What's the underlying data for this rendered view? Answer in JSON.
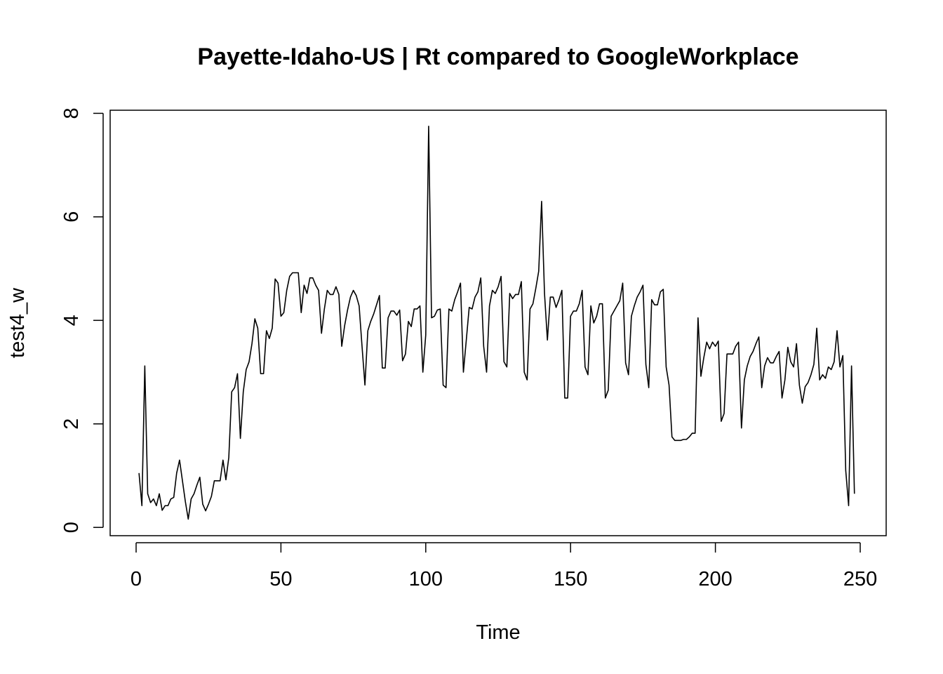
{
  "chart_data": {
    "type": "line",
    "title": "Payette-Idaho-US | Rt compared to GoogleWorkplace",
    "xlabel": "Time",
    "ylabel": "test4_w",
    "xlim": [
      -8.96,
      258.96
    ],
    "ylim": [
      -0.16,
      8.06
    ],
    "xticks": [
      0,
      50,
      100,
      150,
      200,
      250
    ],
    "yticks": [
      0,
      2,
      4,
      6,
      8
    ],
    "grid": false,
    "legend": "none",
    "line_color": "#000000",
    "series": [
      {
        "x": [
          1,
          2,
          3,
          4,
          5,
          6,
          7,
          8,
          9,
          10,
          11,
          12,
          13,
          14,
          15,
          16,
          17,
          18,
          19,
          20,
          21,
          22,
          23,
          24,
          25,
          26,
          27,
          28,
          29,
          30,
          31,
          32,
          33,
          34,
          35,
          36,
          37,
          38,
          39,
          40,
          41,
          42,
          43,
          44,
          45,
          46,
          47,
          48,
          49,
          50,
          51,
          52,
          53,
          54,
          55,
          56,
          57,
          58,
          59,
          60,
          61,
          62,
          63,
          64,
          65,
          66,
          67,
          68,
          69,
          70,
          71,
          72,
          73,
          74,
          75,
          76,
          77,
          78,
          79,
          80,
          81,
          82,
          83,
          84,
          85,
          86,
          87,
          88,
          89,
          90,
          91,
          92,
          93,
          94,
          95,
          96,
          97,
          98,
          99,
          100,
          101,
          102,
          103,
          104,
          105,
          106,
          107,
          108,
          109,
          110,
          111,
          112,
          113,
          114,
          115,
          116,
          117,
          118,
          119,
          120,
          121,
          122,
          123,
          124,
          125,
          126,
          127,
          128,
          129,
          130,
          131,
          132,
          133,
          134,
          135,
          136,
          137,
          138,
          139,
          140,
          141,
          142,
          143,
          144,
          145,
          146,
          147,
          148,
          149,
          150,
          151,
          152,
          153,
          154,
          155,
          156,
          157,
          158,
          159,
          160,
          161,
          162,
          163,
          164,
          165,
          166,
          167,
          168,
          169,
          170,
          171,
          172,
          173,
          174,
          175,
          176,
          177,
          178,
          179,
          180,
          181,
          182,
          183,
          184,
          185,
          186,
          187,
          188,
          189,
          190,
          191,
          192,
          193,
          194,
          195,
          196,
          197,
          198,
          199,
          200,
          201,
          202,
          203,
          204,
          205,
          206,
          207,
          208,
          209,
          210,
          211,
          212,
          213,
          214,
          215,
          216,
          217,
          218,
          219,
          220,
          221,
          222,
          223,
          224,
          225,
          226,
          227,
          228,
          229,
          230,
          231,
          232,
          233,
          234,
          235,
          236,
          237,
          238,
          239,
          240,
          241,
          242,
          243,
          244,
          245,
          246,
          247,
          248
        ],
        "values": [
          1.05,
          0.42,
          3.12,
          0.65,
          0.48,
          0.55,
          0.42,
          0.65,
          0.33,
          0.42,
          0.42,
          0.55,
          0.58,
          1.05,
          1.3,
          0.9,
          0.5,
          0.16,
          0.55,
          0.65,
          0.82,
          0.97,
          0.45,
          0.32,
          0.45,
          0.6,
          0.9,
          0.9,
          0.9,
          1.3,
          0.92,
          1.35,
          2.62,
          2.7,
          2.97,
          1.72,
          2.62,
          3.05,
          3.2,
          3.55,
          4.03,
          3.85,
          2.97,
          2.97,
          3.8,
          3.65,
          3.85,
          4.8,
          4.72,
          4.08,
          4.15,
          4.58,
          4.85,
          4.92,
          4.92,
          4.92,
          4.15,
          4.68,
          4.52,
          4.82,
          4.82,
          4.68,
          4.58,
          3.75,
          4.22,
          4.58,
          4.5,
          4.5,
          4.65,
          4.5,
          3.5,
          3.9,
          4.2,
          4.45,
          4.58,
          4.48,
          4.28,
          3.5,
          2.75,
          3.8,
          3.98,
          4.12,
          4.3,
          4.48,
          3.08,
          3.08,
          4.05,
          4.18,
          4.18,
          4.1,
          4.2,
          3.22,
          3.35,
          3.98,
          3.88,
          4.22,
          4.22,
          4.28,
          3.0,
          3.72,
          7.75,
          4.05,
          4.08,
          4.2,
          4.22,
          2.75,
          2.7,
          4.22,
          4.18,
          4.4,
          4.55,
          4.72,
          3.0,
          3.62,
          4.25,
          4.22,
          4.45,
          4.55,
          4.82,
          3.5,
          3.0,
          4.28,
          4.58,
          4.52,
          4.65,
          4.85,
          3.2,
          3.1,
          4.52,
          4.42,
          4.5,
          4.5,
          4.75,
          3.0,
          2.85,
          4.22,
          4.32,
          4.62,
          4.95,
          6.3,
          4.52,
          3.62,
          4.45,
          4.45,
          4.25,
          4.4,
          4.58,
          2.5,
          2.5,
          4.08,
          4.18,
          4.18,
          4.32,
          4.58,
          3.1,
          2.95,
          4.28,
          3.95,
          4.08,
          4.32,
          4.32,
          2.5,
          2.65,
          4.08,
          4.18,
          4.28,
          4.38,
          4.72,
          3.18,
          2.95,
          4.08,
          4.28,
          4.45,
          4.55,
          4.68,
          3.15,
          2.7,
          4.4,
          4.3,
          4.3,
          4.55,
          4.6,
          3.1,
          2.75,
          1.75,
          1.68,
          1.68,
          1.68,
          1.7,
          1.7,
          1.75,
          1.82,
          1.82,
          4.05,
          2.92,
          3.28,
          3.58,
          3.45,
          3.58,
          3.5,
          3.6,
          2.05,
          2.2,
          3.35,
          3.35,
          3.35,
          3.5,
          3.58,
          1.92,
          2.85,
          3.12,
          3.3,
          3.4,
          3.55,
          3.68,
          2.7,
          3.12,
          3.28,
          3.18,
          3.18,
          3.3,
          3.4,
          2.5,
          2.85,
          3.48,
          3.2,
          3.1,
          3.55,
          2.75,
          2.4,
          2.72,
          2.8,
          2.95,
          3.15,
          3.85,
          2.85,
          2.95,
          2.88,
          3.1,
          3.05,
          3.2,
          3.8,
          3.1,
          3.32,
          1.1,
          0.42,
          3.12,
          0.65
        ]
      }
    ]
  }
}
